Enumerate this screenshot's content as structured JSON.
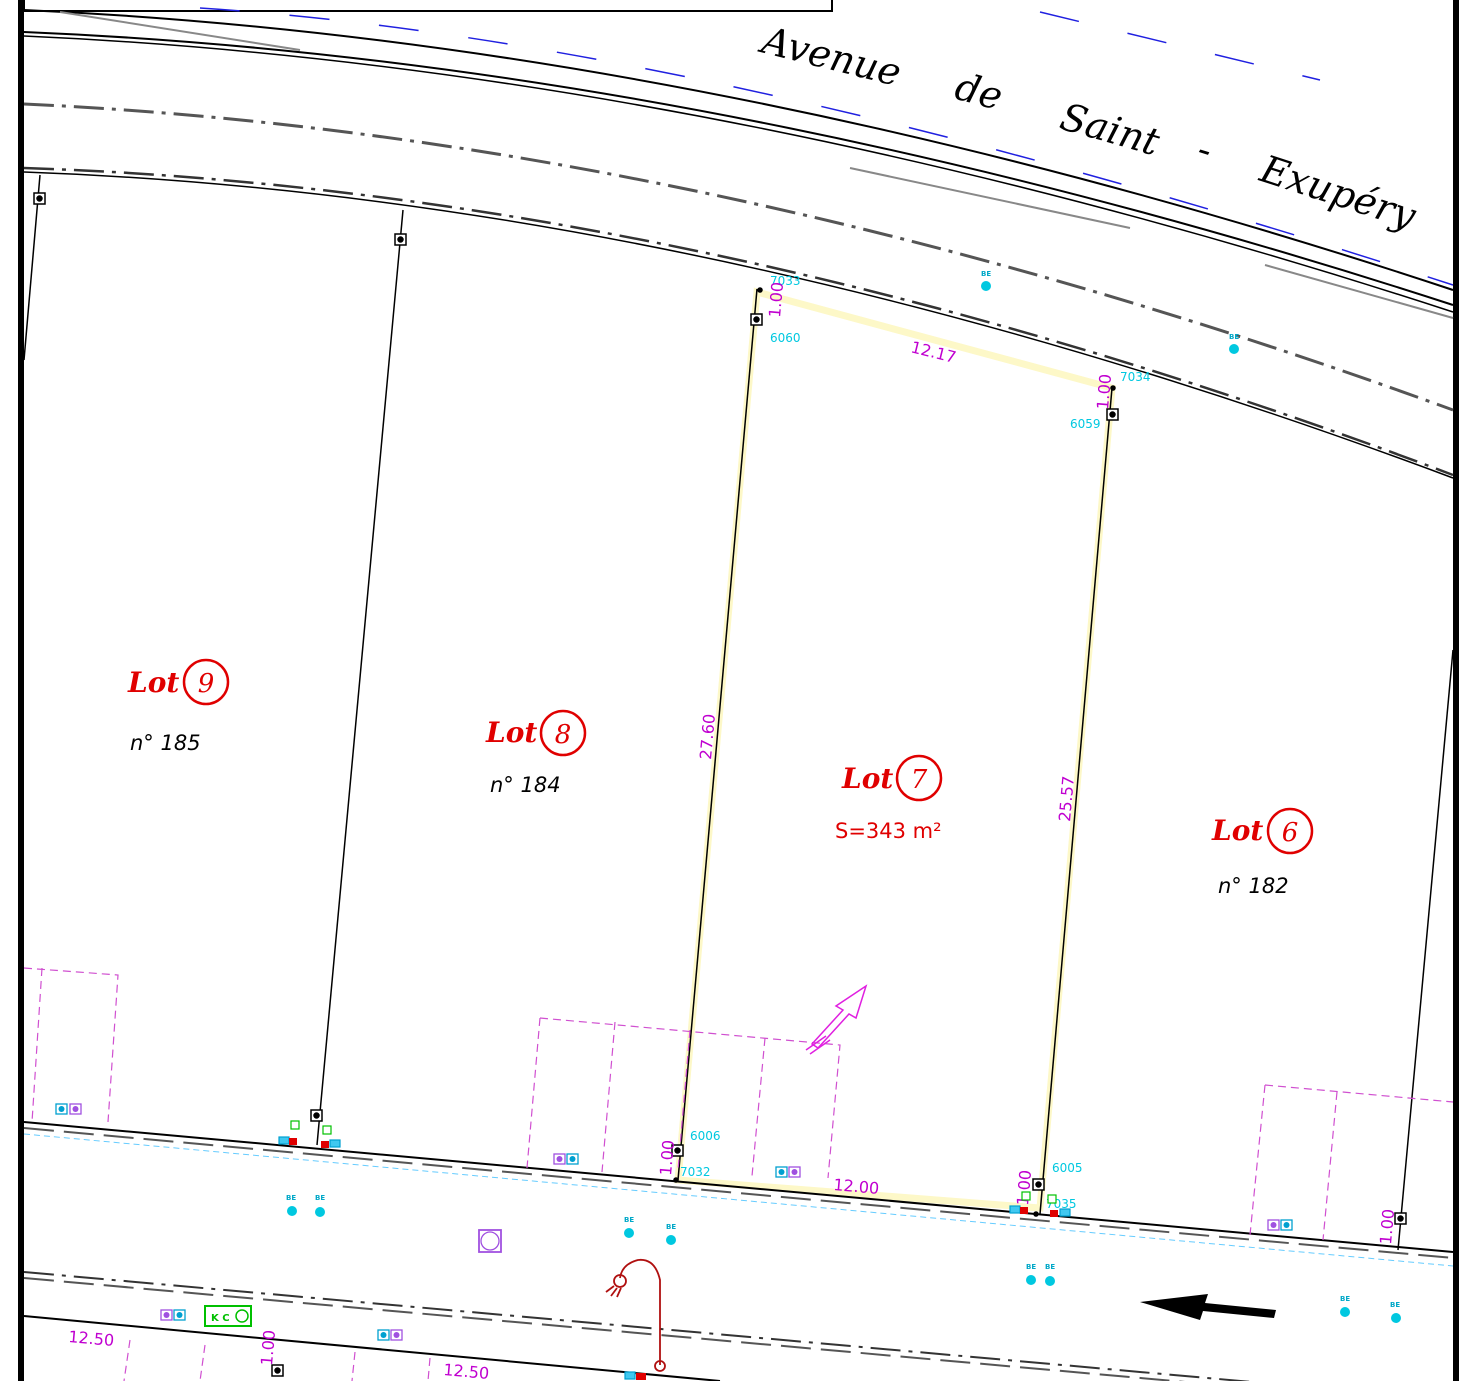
{
  "street": {
    "name_parts": [
      "Avenue",
      "de",
      "Saint",
      "-",
      "Exupéry"
    ]
  },
  "lots": [
    {
      "word": "Lot",
      "number": "9",
      "detail": "n° 185"
    },
    {
      "word": "Lot",
      "number": "8",
      "detail": "n° 184"
    },
    {
      "word": "Lot",
      "number": "7",
      "detail": "S=343  m²"
    },
    {
      "word": "Lot",
      "number": "6",
      "detail": "n° 182"
    }
  ],
  "dimensions": {
    "lot7_top": "12.17",
    "lot7_left": "27.60",
    "lot7_right": "25.57",
    "lot7_bottom": "12.00",
    "setback_tl": "1.00",
    "setback_tr": "1.00",
    "setback_bl": "1.00",
    "setback_br": "1.00",
    "setback_far": "1.00",
    "setback_low": "1.00",
    "bottom_left_1": "12.50",
    "bottom_left_2": "12.50"
  },
  "points": {
    "p7033": "7033",
    "p6060": "6060",
    "p7034": "7034",
    "p6059": "6059",
    "p6006": "6006",
    "p7032": "7032",
    "p6005": "6005",
    "p7035": "7035"
  },
  "symbols": {
    "be": "BE",
    "kc": "K C"
  },
  "colors": {
    "lot_label": "#e00000",
    "dimension": "#c000d0",
    "point_id": "#00c8e0",
    "highlight": "#fdf8c8"
  }
}
